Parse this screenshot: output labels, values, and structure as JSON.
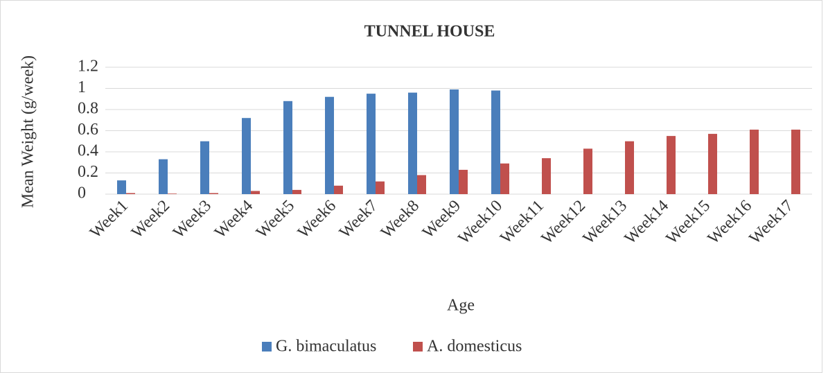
{
  "chart_data": {
    "type": "bar",
    "title": "TUNNEL HOUSE",
    "x_label": "Age",
    "y_label": "Mean Weight (g/week)",
    "categories": [
      "Week1",
      "Week2",
      "Week3",
      "Week4",
      "Week5",
      "Week6",
      "Week7",
      "Week8",
      "Week9",
      "Week10",
      "Week11",
      "Week12",
      "Week13",
      "Week14",
      "Week15",
      "Week16",
      "Week17"
    ],
    "series": [
      {
        "name": "G. bimaculatus",
        "color": "#4a7ebb",
        "values": [
          0.13,
          0.33,
          0.5,
          0.72,
          0.88,
          0.92,
          0.95,
          0.96,
          0.99,
          0.98,
          null,
          null,
          null,
          null,
          null,
          null,
          null
        ]
      },
      {
        "name": "A. domesticus",
        "color": "#c0504d",
        "values": [
          0.01,
          0.005,
          0.01,
          0.03,
          0.04,
          0.08,
          0.12,
          0.18,
          0.23,
          0.29,
          0.34,
          0.43,
          0.5,
          0.55,
          0.57,
          0.61,
          0.61
        ]
      }
    ],
    "ylim": [
      0,
      1.2
    ],
    "yticks": [
      0,
      0.2,
      0.4,
      0.6,
      0.8,
      1,
      1.2
    ],
    "grid": true,
    "legend": "bottom"
  }
}
